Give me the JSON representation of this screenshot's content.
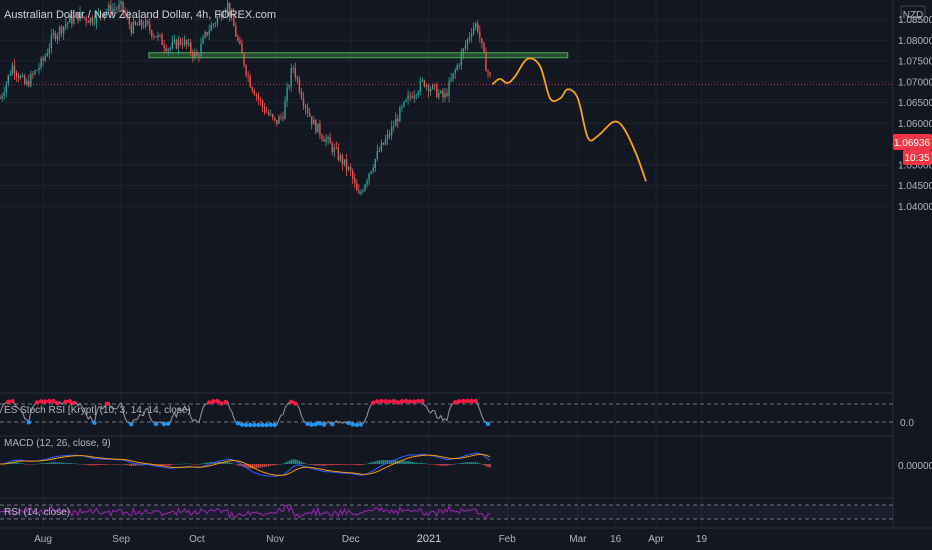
{
  "header": {
    "title": "Australian Dollar / New Zealand Dollar, 4h, FOREX.com",
    "currency": "NZD"
  },
  "price_axis": {
    "ticks": [
      "1.08500",
      "1.08000",
      "1.07500",
      "1.07000",
      "1.06500",
      "1.06000",
      "1.05500",
      "1.05000",
      "1.04500",
      "1.04000"
    ],
    "current_price": "1.06936",
    "countdown": "10:35"
  },
  "time_axis": {
    "labels": [
      "Aug",
      "Sep",
      "Oct",
      "Nov",
      "Dec",
      "2021",
      "Feb",
      "Mar",
      "16",
      "Apr",
      "19"
    ]
  },
  "indicators": {
    "stoch": {
      "label": "ES Stoch RSI [Krypt] (10, 3, 14, 14, close)",
      "value": "0.0"
    },
    "macd": {
      "label": "MACD (12, 26, close, 9)",
      "value": "0.00000"
    },
    "rsi": {
      "label": "RSI (14, close)"
    }
  },
  "colors": {
    "background": "#131722",
    "candle_up": "#26a69a",
    "candle_down": "#ef5350",
    "projection": "#f7a21b",
    "zone": "#4caf50",
    "price_label": "#f23645",
    "macd_line": "#2962ff",
    "signal_line": "#ff9800",
    "rsi_line": "#9c27b0"
  },
  "chart_data": {
    "type": "candlestick",
    "y_range": [
      1.0365,
      1.0885
    ],
    "resistance_zone": {
      "low": 1.0763,
      "high": 1.077,
      "from": "Sep 12",
      "to": "Feb 25"
    },
    "price_path": [
      [
        "Jul 15",
        1.066
      ],
      [
        "Jul 20",
        1.074
      ],
      [
        "Jul 25",
        1.069
      ],
      [
        "Aug 1",
        1.075
      ],
      [
        "Aug 5",
        1.081
      ],
      [
        "Aug 10",
        1.084
      ],
      [
        "Aug 15",
        1.086
      ],
      [
        "Aug 20",
        1.085
      ],
      [
        "Aug 25",
        1.087
      ],
      [
        "Sep 1",
        1.088
      ],
      [
        "Sep 5",
        1.083
      ],
      [
        "Sep 10",
        1.084
      ],
      [
        "Sep 15",
        1.081
      ],
      [
        "Sep 20",
        1.078
      ],
      [
        "Sep 25",
        1.08
      ],
      [
        "Oct 1",
        1.076
      ],
      [
        "Oct 5",
        1.082
      ],
      [
        "Oct 10",
        1.086
      ],
      [
        "Oct 13",
        1.089
      ],
      [
        "Oct 18",
        1.078
      ],
      [
        "Oct 22",
        1.07
      ],
      [
        "Oct 27",
        1.064
      ],
      [
        "Nov 1",
        1.06
      ],
      [
        "Nov 4",
        1.062
      ],
      [
        "Nov 8",
        1.074
      ],
      [
        "Nov 12",
        1.066
      ],
      [
        "Nov 16",
        1.06
      ],
      [
        "Nov 20",
        1.057
      ],
      [
        "Nov 25",
        1.053
      ],
      [
        "Dec 1",
        1.048
      ],
      [
        "Dec 4",
        1.042
      ],
      [
        "Dec 8",
        1.048
      ],
      [
        "Dec 12",
        1.053
      ],
      [
        "Dec 16",
        1.057
      ],
      [
        "Dec 20",
        1.062
      ],
      [
        "Dec 25",
        1.067
      ],
      [
        "Dec 30",
        1.07
      ],
      [
        "Jan 3",
        1.068
      ],
      [
        "Jan 7",
        1.066
      ],
      [
        "Jan 11",
        1.072
      ],
      [
        "Jan 15",
        1.078
      ],
      [
        "Jan 18",
        1.083
      ],
      [
        "Jan 20",
        1.084
      ],
      [
        "Jan 23",
        1.075
      ],
      [
        "Jan 26",
        1.0693
      ]
    ],
    "projection": [
      [
        "Jan 26",
        1.0693
      ],
      [
        "Jan 29",
        1.0707
      ],
      [
        "Feb 1",
        1.0697
      ],
      [
        "Feb 4",
        1.0712
      ],
      [
        "Feb 9",
        1.0755
      ],
      [
        "Feb 14",
        1.0738
      ],
      [
        "Feb 18",
        1.066
      ],
      [
        "Feb 22",
        1.066
      ],
      [
        "Feb 25",
        1.0682
      ],
      [
        "Mar 1",
        1.066
      ],
      [
        "Mar 5",
        1.0565
      ],
      [
        "Mar 9",
        1.057
      ],
      [
        "Mar 15",
        1.0603
      ],
      [
        "Mar 19",
        1.059
      ],
      [
        "Mar 24",
        1.0528
      ],
      [
        "Mar 28",
        1.046
      ]
    ]
  }
}
